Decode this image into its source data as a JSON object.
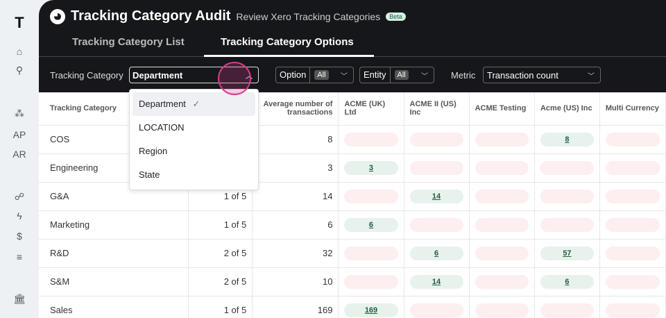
{
  "sidebar": {
    "items": [
      {
        "icon": "brand-logo-icon"
      },
      {
        "icon": "home-icon"
      },
      {
        "icon": "search-icon"
      },
      {
        "icon": "entities-icon"
      },
      {
        "label": "AP"
      },
      {
        "label": "AR"
      },
      {
        "icon": "network-icon"
      },
      {
        "icon": "lightning-icon"
      },
      {
        "icon": "dollar-doc-icon"
      },
      {
        "icon": "list-search-icon"
      },
      {
        "icon": "bank-icon"
      }
    ]
  },
  "header": {
    "title": "Tracking Category Audit",
    "subtitle": "Review Xero Tracking Categories",
    "badge": "Beta"
  },
  "tabs": [
    {
      "label": "Tracking Category List"
    },
    {
      "label": "Tracking Category Options",
      "active": true
    }
  ],
  "filters": {
    "tracking_category_label": "Tracking Category",
    "tracking_category_value": "Department",
    "option_label": "Option",
    "option_value": "All",
    "entity_label": "Entity",
    "entity_value": "All",
    "metric_label": "Metric",
    "metric_value": "Transaction count"
  },
  "dropdown": {
    "options": [
      "Department",
      "LOCATION",
      "Region",
      "State"
    ],
    "selected": "Department"
  },
  "table": {
    "columns": [
      "Tracking Category",
      "",
      "Average number of transactions",
      "ACME (UK) Ltd",
      "ACME II (US) Inc",
      "ACME Testing",
      "Acme (US) Inc",
      "Multi Currency"
    ],
    "rows": [
      {
        "name": "COS",
        "usage": "",
        "avg": "8",
        "cells": [
          "",
          "",
          "",
          "8",
          ""
        ]
      },
      {
        "name": "Engineering",
        "usage": "",
        "avg": "3",
        "cells": [
          "3",
          "",
          "",
          "",
          ""
        ]
      },
      {
        "name": "G&A",
        "usage": "1 of 5",
        "avg": "14",
        "cells": [
          "",
          "14",
          "",
          "",
          ""
        ]
      },
      {
        "name": "Marketing",
        "usage": "1 of 5",
        "avg": "6",
        "cells": [
          "6",
          "",
          "",
          "",
          ""
        ]
      },
      {
        "name": "R&D",
        "usage": "2 of 5",
        "avg": "32",
        "cells": [
          "",
          "6",
          "",
          "57",
          ""
        ]
      },
      {
        "name": "S&M",
        "usage": "2 of 5",
        "avg": "10",
        "cells": [
          "",
          "14",
          "",
          "6",
          ""
        ]
      },
      {
        "name": "Sales",
        "usage": "1 of 5",
        "avg": "169",
        "cells": [
          "169",
          "",
          "",
          "",
          ""
        ]
      }
    ]
  },
  "colors": {
    "present": "#e8f2ed",
    "absent": "#fdeef0",
    "accent": "#d63c8c"
  }
}
